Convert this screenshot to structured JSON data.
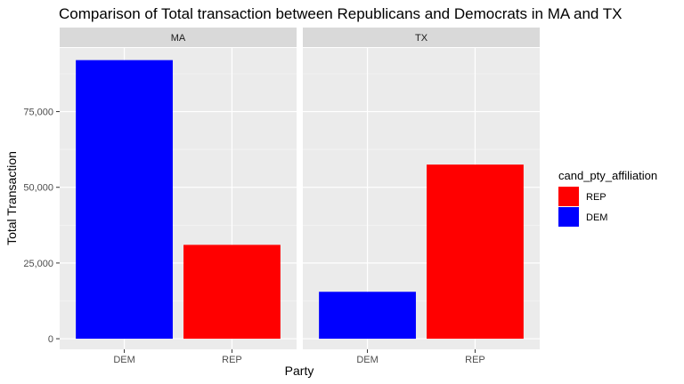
{
  "chart_data": {
    "type": "bar",
    "title": "Comparison of Total transaction between Republicans and Democrats in MA and TX",
    "xlabel": "Party",
    "ylabel": "Total Transaction",
    "ylim": [
      -3500,
      96000
    ],
    "yticks": [
      0,
      25000,
      50000,
      75000
    ],
    "ytick_labels": [
      "0",
      "25,000",
      "50,000",
      "75,000"
    ],
    "grid": true,
    "panels": [
      {
        "label": "MA",
        "categories": [
          "DEM",
          "REP"
        ],
        "values": [
          92000,
          31000
        ],
        "fill": [
          "DEM",
          "REP"
        ]
      },
      {
        "label": "TX",
        "categories": [
          "DEM",
          "REP"
        ],
        "values": [
          15500,
          57500
        ],
        "fill": [
          "DEM",
          "REP"
        ]
      }
    ],
    "legend": {
      "title": "cand_pty_affiliation",
      "position": "right",
      "entries": [
        {
          "label": "REP",
          "color": "#ff0000"
        },
        {
          "label": "DEM",
          "color": "#0000ff"
        }
      ]
    },
    "colors": {
      "DEM": "#0000ff",
      "REP": "#ff0000"
    }
  }
}
